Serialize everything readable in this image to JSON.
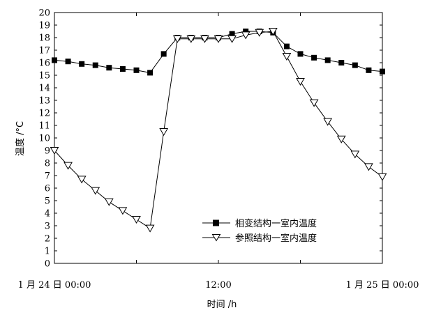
{
  "chart_data": {
    "type": "line",
    "xlabel": "时间 /h",
    "ylabel": "温度 /°C",
    "ylim": [
      0,
      20
    ],
    "xlim": [
      0,
      24
    ],
    "grid": false,
    "legend_position": "bottom-right",
    "x_ticks": [
      0,
      12,
      24
    ],
    "x_tick_labels": [
      "1 月 24 日 00:00",
      "12:00",
      "1 月 25 日 00:00"
    ],
    "y_ticks": [
      0,
      1,
      2,
      3,
      4,
      5,
      6,
      7,
      8,
      9,
      10,
      11,
      12,
      13,
      14,
      15,
      16,
      17,
      18,
      19,
      20
    ],
    "series": [
      {
        "name": "相变结构一室内温度",
        "marker": "filled-square",
        "color": "#000000",
        "x": [
          0,
          1,
          2,
          3,
          4,
          5,
          6,
          7,
          8,
          9,
          10,
          11,
          12,
          13,
          14,
          15,
          16,
          17,
          18,
          19,
          20,
          21,
          22,
          23,
          24
        ],
        "values": [
          16.2,
          16.1,
          15.9,
          15.8,
          15.6,
          15.5,
          15.4,
          15.2,
          16.7,
          18.0,
          18.0,
          18.0,
          18.0,
          18.3,
          18.5,
          18.5,
          18.4,
          17.3,
          16.7,
          16.4,
          16.2,
          16.0,
          15.8,
          15.4,
          15.3
        ]
      },
      {
        "name": "参照结构一室内温度",
        "marker": "open-triangle-down",
        "color": "#000000",
        "x": [
          0,
          1,
          2,
          3,
          4,
          5,
          6,
          7,
          8,
          9,
          10,
          11,
          12,
          13,
          14,
          15,
          16,
          17,
          18,
          19,
          20,
          21,
          22,
          23,
          24
        ],
        "values": [
          9.0,
          7.8,
          6.7,
          5.8,
          4.9,
          4.2,
          3.5,
          2.8,
          10.5,
          17.9,
          17.9,
          17.9,
          17.9,
          17.9,
          18.2,
          18.4,
          18.5,
          16.5,
          14.5,
          12.8,
          11.3,
          9.9,
          8.7,
          7.7,
          6.9
        ]
      }
    ]
  }
}
